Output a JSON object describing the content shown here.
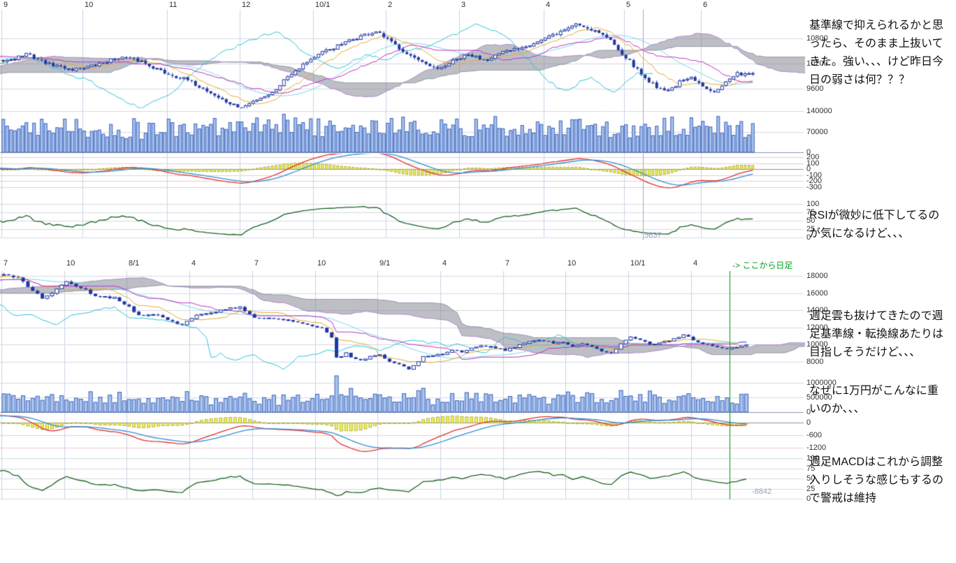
{
  "colors": {
    "candle": "#2038a0",
    "candle_up_fill": "#ffffff",
    "volume_fill": "#a8c6ee",
    "volume_stroke": "#3a5cb8",
    "tenkan": "#e8a830",
    "kijun": "#c030c0",
    "chikou": "#30c0d8",
    "sma25": "#76d8e8",
    "senkou_a": "#b088c8",
    "senkou_b": "#9098a8",
    "cloud_fill": "rgba(125,125,140,0.5)",
    "macd_line": "#e03030",
    "macd_signal": "#3090d8",
    "macd_hist_fill": "#f0ee60",
    "macd_hist_stroke": "#a8a820",
    "rsi_line": "#1a6020",
    "grid": "#d4d8e2",
    "grid_vertical": "#c8d2e4",
    "grid_macd": "#e8cccc",
    "zero_line": "#8894ac",
    "marker_green": "#00a020",
    "cursor_label": "#98a0c8",
    "tick_text": "#303030",
    "annotation_text": "#111111"
  },
  "markers": {
    "daily_start_label": "-> ここから日足",
    "daily_cursor_value": "5637",
    "weekly_cursor_value": "-8842"
  },
  "annotations": {
    "daily_comment": "基準線で抑えられるかと思ったら、そのまま上抜いてきた。強い、、、けど昨日今日の弱さは何？？？",
    "rsi_comment": "RSIが微妙に低下してるのが気になるけど、、、",
    "weekly_cloud_comment": "週足雲も抜けてきたので週足基準線・転換線あたりは目指しそうだけど、、、",
    "ten_thousand_comment": "なぜに1万円がこんなに重いのか、、、",
    "weekly_macd_comment": "週足MACDはこれから調整入りしそうな感じもするので警戒は維持"
  },
  "chart_data": [
    {
      "id": "daily-chart",
      "type": "candlestick",
      "overlays": [
        "ichimoku",
        "sma25"
      ],
      "indicators": [
        "volume",
        "macd(12,26,9)",
        "rsi(14)"
      ],
      "x_tick_labels": [
        "9",
        "10",
        "11",
        "12",
        "10/1",
        "2",
        "3",
        "4",
        "5",
        "6"
      ],
      "x_tick_indices": [
        0,
        21,
        43,
        62,
        81,
        100,
        119,
        141,
        162,
        182
      ],
      "num_candles": 196,
      "panels": {
        "price": {
          "tick_labels": [
            "10800",
            "10200",
            "9600"
          ],
          "tick_values": [
            10800,
            10200,
            9600
          ],
          "ylim": [
            9150,
            11480
          ]
        },
        "volume": {
          "tick_labels": [
            "140000",
            "70000",
            "0"
          ],
          "tick_values": [
            140000,
            70000,
            0
          ],
          "ylim": [
            0,
            150000
          ]
        },
        "macd": {
          "tick_labels": [
            "200",
            "100",
            "0",
            "-100",
            "-200",
            "-300"
          ],
          "tick_values": [
            200,
            100,
            0,
            -100,
            -200,
            -300
          ],
          "ylim": [
            -480,
            250
          ]
        },
        "rsi": {
          "tick_labels": [
            "100",
            "75",
            "50",
            "25",
            "0"
          ],
          "tick_values": [
            100,
            75,
            50,
            25,
            0
          ],
          "ylim": [
            0,
            100
          ]
        }
      },
      "close_anchors": [
        [
          -90,
          9380
        ],
        [
          -80,
          9620
        ],
        [
          -70,
          9850
        ],
        [
          -60,
          9760
        ],
        [
          -50,
          9480
        ],
        [
          -40,
          10150
        ],
        [
          -25,
          10480
        ],
        [
          -10,
          10280
        ],
        [
          0,
          10250
        ],
        [
          6,
          10420
        ],
        [
          12,
          10180
        ],
        [
          18,
          10060
        ],
        [
          24,
          10150
        ],
        [
          30,
          10350
        ],
        [
          36,
          10250
        ],
        [
          42,
          9980
        ],
        [
          48,
          9800
        ],
        [
          53,
          9550
        ],
        [
          58,
          9280
        ],
        [
          62,
          9130
        ],
        [
          66,
          9350
        ],
        [
          70,
          9500
        ],
        [
          74,
          9900
        ],
        [
          79,
          10250
        ],
        [
          84,
          10500
        ],
        [
          88,
          10650
        ],
        [
          93,
          10850
        ],
        [
          97,
          10950
        ],
        [
          101,
          10700
        ],
        [
          105,
          10450
        ],
        [
          109,
          10200
        ],
        [
          113,
          10050
        ],
        [
          117,
          10250
        ],
        [
          121,
          10400
        ],
        [
          125,
          10300
        ],
        [
          130,
          10450
        ],
        [
          135,
          10600
        ],
        [
          140,
          10750
        ],
        [
          145,
          10950
        ],
        [
          149,
          11150
        ],
        [
          152,
          11050
        ],
        [
          155,
          10950
        ],
        [
          158,
          10750
        ],
        [
          161,
          10450
        ],
        [
          164,
          10150
        ],
        [
          167,
          9850
        ],
        [
          170,
          9650
        ],
        [
          173,
          9550
        ],
        [
          176,
          9750
        ],
        [
          179,
          9850
        ],
        [
          182,
          9650
        ],
        [
          185,
          9550
        ],
        [
          188,
          9750
        ],
        [
          191,
          9950
        ],
        [
          195,
          9980
        ]
      ],
      "noise": 0.004,
      "wick": 0.005,
      "gap": 0.002,
      "volume_base": 85000,
      "volume_spike": 14
    },
    {
      "id": "weekly-chart",
      "type": "candlestick",
      "overlays": [
        "ichimoku",
        "sma25"
      ],
      "indicators": [
        "volume",
        "macd(12,26,9)",
        "rsi(14)"
      ],
      "x_tick_labels": [
        "7",
        "10",
        "8/1",
        "4",
        "7",
        "10",
        "9/1",
        "4",
        "7",
        "10",
        "10/1",
        "4"
      ],
      "x_tick_indices": [
        0,
        13,
        26,
        39,
        52,
        65,
        78,
        91,
        104,
        117,
        130,
        143
      ],
      "num_candles": 155,
      "marker_index": 151,
      "panels": {
        "price": {
          "tick_labels": [
            "18000",
            "16000",
            "14000",
            "12000",
            "10000",
            "8000"
          ],
          "tick_values": [
            18000,
            16000,
            14000,
            12000,
            10000,
            8000
          ],
          "ylim": [
            6600,
            18600
          ]
        },
        "volume": {
          "tick_labels": [
            "1000000",
            "500000",
            "0"
          ],
          "tick_values": [
            1000000,
            500000,
            0
          ],
          "ylim": [
            0,
            1250000
          ]
        },
        "macd": {
          "tick_labels": [
            "0",
            "-600",
            "-1200"
          ],
          "tick_values": [
            0,
            -600,
            -1200
          ],
          "ylim": [
            -1500,
            350
          ]
        },
        "rsi": {
          "tick_labels": [
            "100",
            "75",
            "50",
            "25",
            "0"
          ],
          "tick_values": [
            100,
            75,
            50,
            25,
            0
          ],
          "ylim": [
            0,
            100
          ]
        }
      },
      "close_anchors": [
        [
          -90,
          16350
        ],
        [
          -78,
          16950
        ],
        [
          -68,
          15150
        ],
        [
          -60,
          16100
        ],
        [
          -52,
          14850
        ],
        [
          -44,
          15900
        ],
        [
          -36,
          16300
        ],
        [
          -28,
          17100
        ],
        [
          -20,
          17000
        ],
        [
          -12,
          17550
        ],
        [
          -4,
          18050
        ],
        [
          0,
          18200
        ],
        [
          3,
          17900
        ],
        [
          6,
          16300
        ],
        [
          8,
          15400
        ],
        [
          11,
          16400
        ],
        [
          13,
          17250
        ],
        [
          16,
          16650
        ],
        [
          19,
          15650
        ],
        [
          23,
          15450
        ],
        [
          26,
          14450
        ],
        [
          28,
          13400
        ],
        [
          31,
          13600
        ],
        [
          34,
          12950
        ],
        [
          37,
          12300
        ],
        [
          40,
          13450
        ],
        [
          44,
          13850
        ],
        [
          47,
          14250
        ],
        [
          49,
          14300
        ],
        [
          52,
          13200
        ],
        [
          55,
          13050
        ],
        [
          58,
          12950
        ],
        [
          61,
          12650
        ],
        [
          64,
          12250
        ],
        [
          66,
          11900
        ],
        [
          68,
          10850
        ],
        [
          69,
          8550
        ],
        [
          70,
          8650
        ],
        [
          71,
          9050
        ],
        [
          72,
          8450
        ],
        [
          74,
          8150
        ],
        [
          76,
          8550
        ],
        [
          78,
          8850
        ],
        [
          80,
          7950
        ],
        [
          82,
          7650
        ],
        [
          84,
          7150
        ],
        [
          85,
          7550
        ],
        [
          87,
          8550
        ],
        [
          89,
          8750
        ],
        [
          91,
          8850
        ],
        [
          93,
          9350
        ],
        [
          95,
          9150
        ],
        [
          97,
          9550
        ],
        [
          99,
          9800
        ],
        [
          101,
          9750
        ],
        [
          104,
          9350
        ],
        [
          106,
          9650
        ],
        [
          108,
          10250
        ],
        [
          110,
          10400
        ],
        [
          112,
          10500
        ],
        [
          114,
          10150
        ],
        [
          116,
          10350
        ],
        [
          118,
          9750
        ],
        [
          120,
          10050
        ],
        [
          122,
          9750
        ],
        [
          124,
          9250
        ],
        [
          126,
          9050
        ],
        [
          128,
          10050
        ],
        [
          130,
          10850
        ],
        [
          132,
          10550
        ],
        [
          134,
          10050
        ],
        [
          136,
          10150
        ],
        [
          138,
          10450
        ],
        [
          140,
          10850
        ],
        [
          141,
          11100
        ],
        [
          142,
          10950
        ],
        [
          143,
          10450
        ],
        [
          145,
          10150
        ],
        [
          147,
          9850
        ],
        [
          150,
          9550
        ],
        [
          152,
          9750
        ],
        [
          154,
          9950
        ]
      ],
      "noise": 0.008,
      "wick": 0.012,
      "gap": 0.004,
      "volume_base": 450000,
      "volume_spike": 9
    }
  ]
}
